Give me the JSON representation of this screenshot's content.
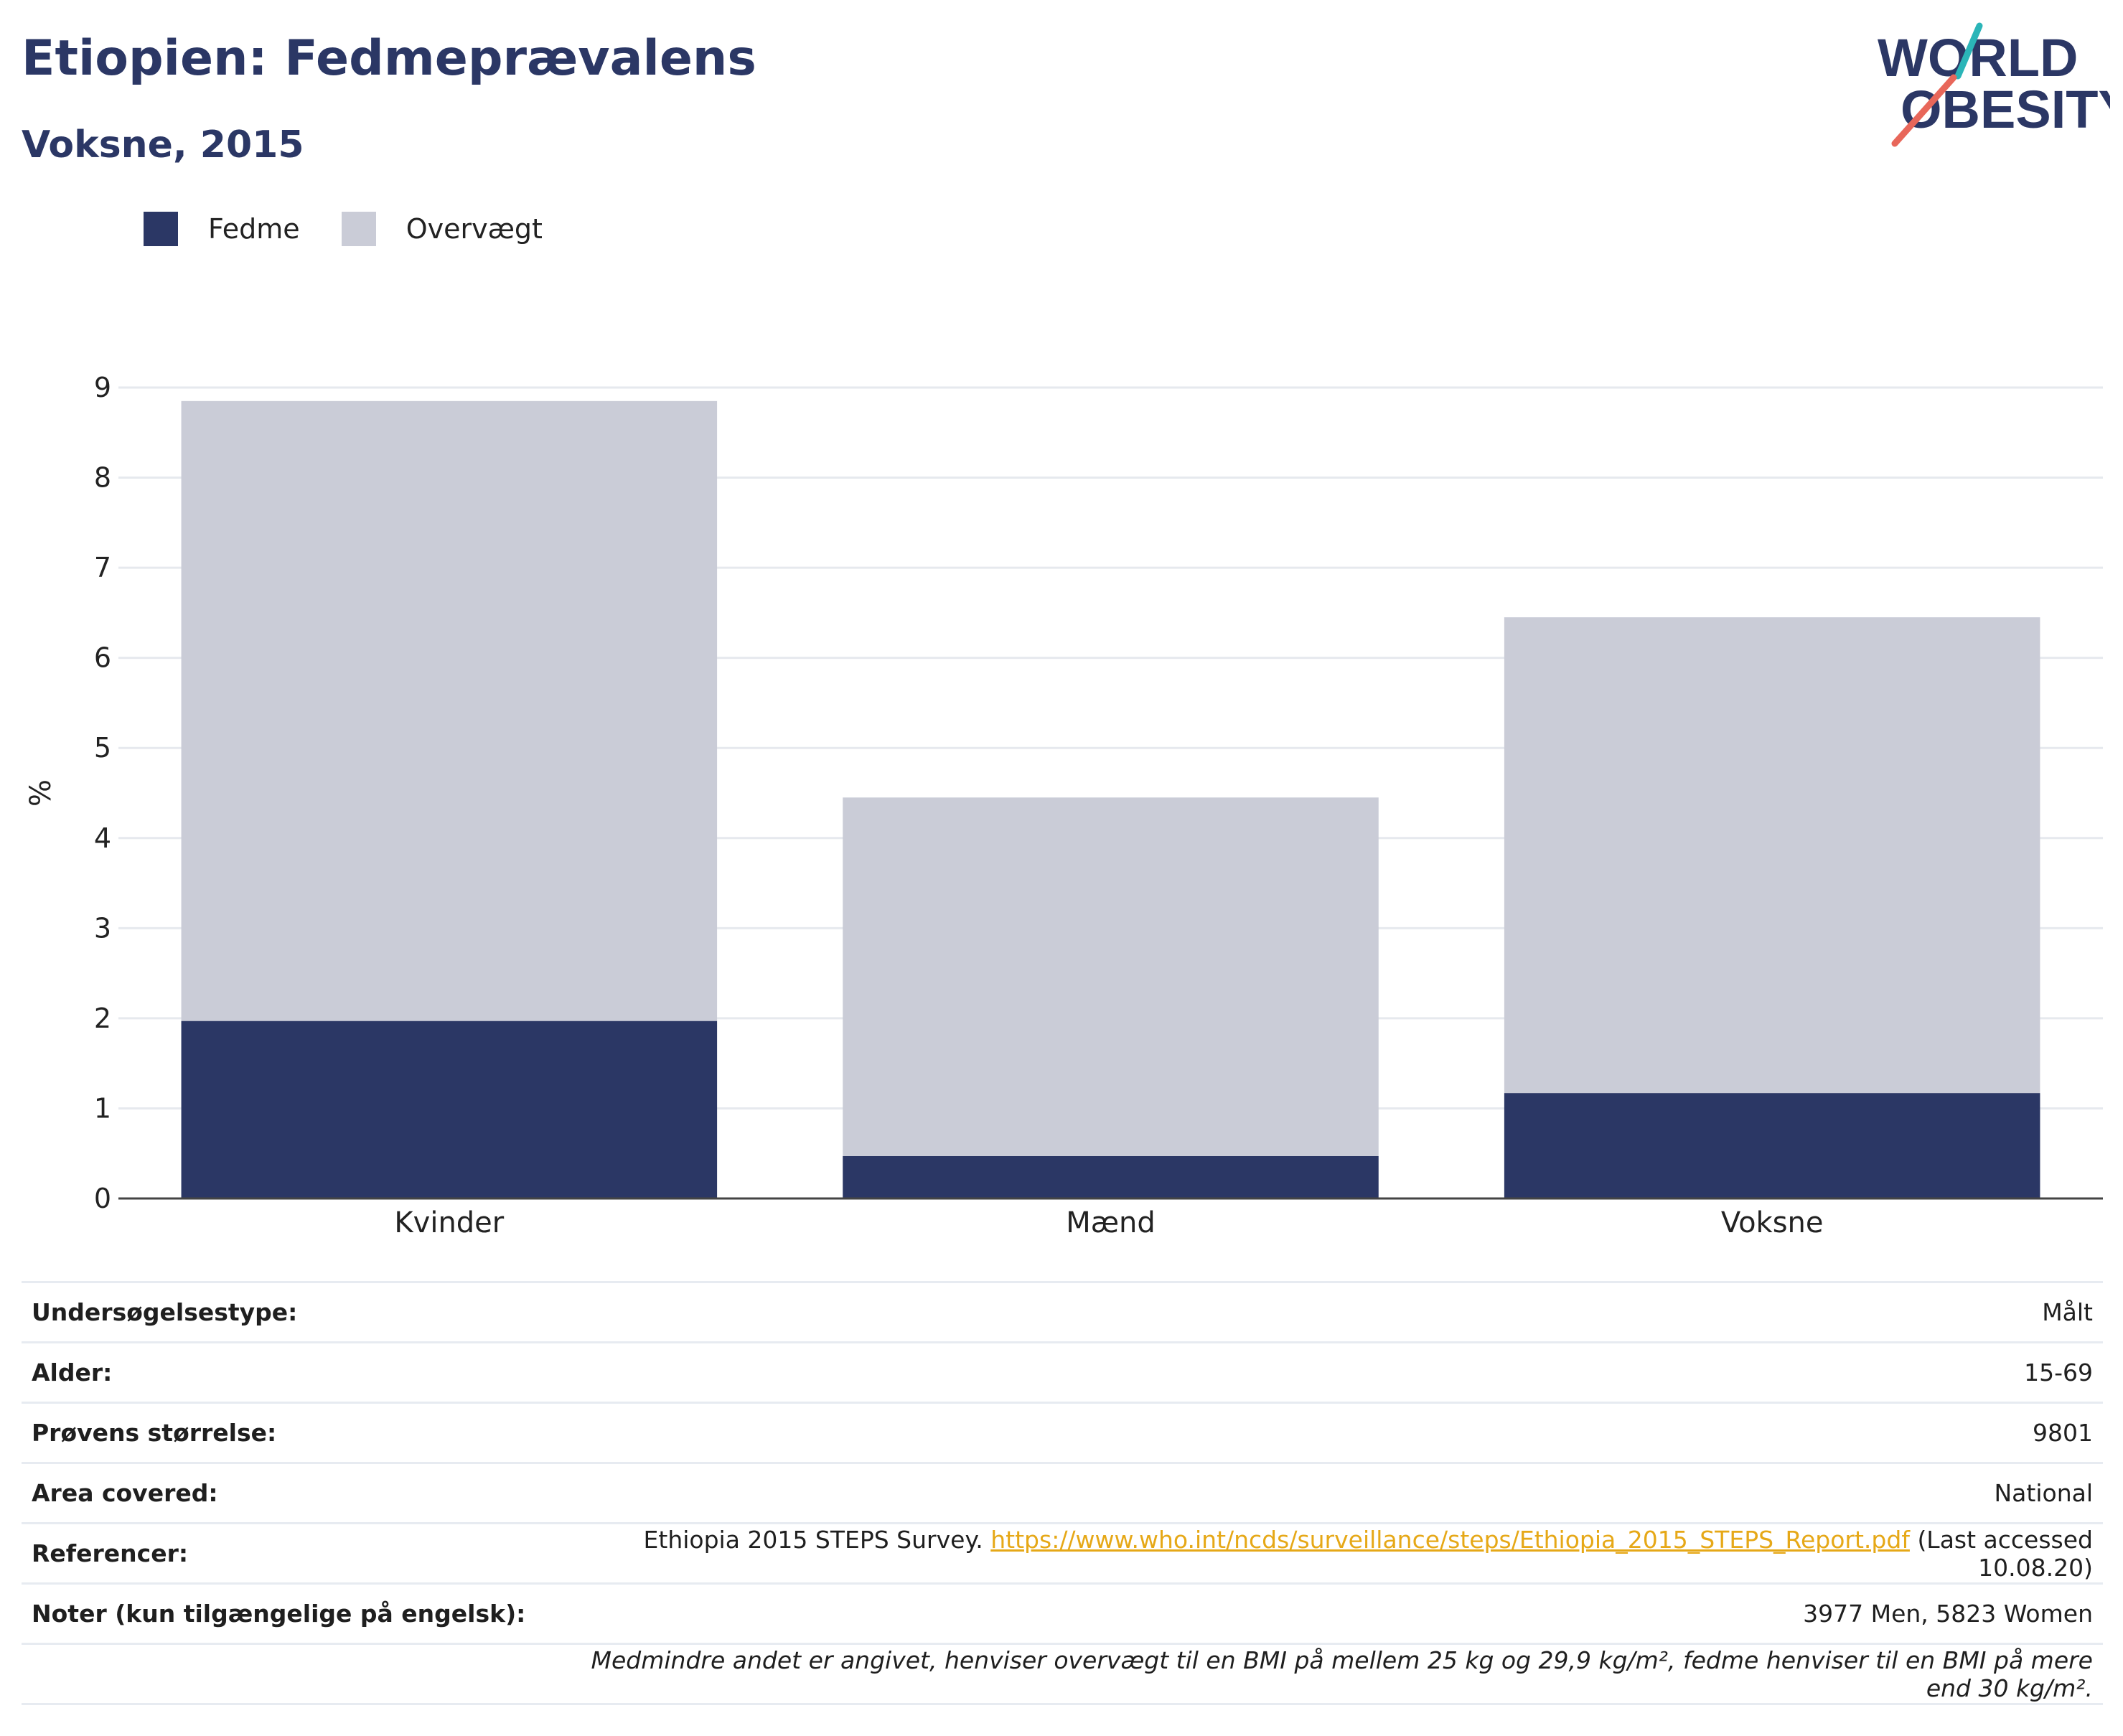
{
  "header": {
    "title": "Etiopien: Fedmeprævalens",
    "subtitle": "Voksne, 2015"
  },
  "logo": {
    "line1": "WORLD",
    "line2": "OBESITY"
  },
  "colors": {
    "fedme": "#2b3765",
    "overvaegt": "#caccd7",
    "title": "#2b3765",
    "link": "#e6a817"
  },
  "legend": {
    "items": [
      "Fedme",
      "Overvægt"
    ]
  },
  "chart_data": {
    "type": "bar",
    "stacked": true,
    "categories": [
      "Kvinder",
      "Mænd",
      "Voksne"
    ],
    "series": [
      {
        "name": "Fedme",
        "values": [
          1.97,
          0.47,
          1.17
        ]
      },
      {
        "name": "Overvægt",
        "values": [
          6.88,
          3.98,
          5.28
        ]
      }
    ],
    "ylabel": "%",
    "ylim": [
      0,
      9
    ],
    "yticks": [
      "0",
      "1",
      "2",
      "3",
      "4",
      "5",
      "6",
      "7",
      "8",
      "9"
    ],
    "grid": true,
    "legend_position": "top-left"
  },
  "info": {
    "rows": [
      {
        "label": "Undersøgelsestype:",
        "value": "Målt"
      },
      {
        "label": "Alder:",
        "value": "15-69"
      },
      {
        "label": "Prøvens størrelse:",
        "value": "9801"
      },
      {
        "label": "Area covered:",
        "value": "National"
      }
    ],
    "reference": {
      "label": "Referencer:",
      "text": "Ethiopia 2015 STEPS Survey.",
      "link": "https://www.who.int/ncds/surveillance/steps/Ethiopia_2015_STEPS_Report.pdf",
      "suffix": "(Last accessed 10.08.20)"
    },
    "notes": {
      "label": "Noter (kun tilgængelige på engelsk):",
      "value": "3977 Men, 5823 Women"
    },
    "footnote": "Medmindre andet er angivet, henviser overvægt til en BMI på mellem 25 kg og 29,9 kg/m², fedme henviser til en BMI på mere end 30 kg/m²."
  }
}
